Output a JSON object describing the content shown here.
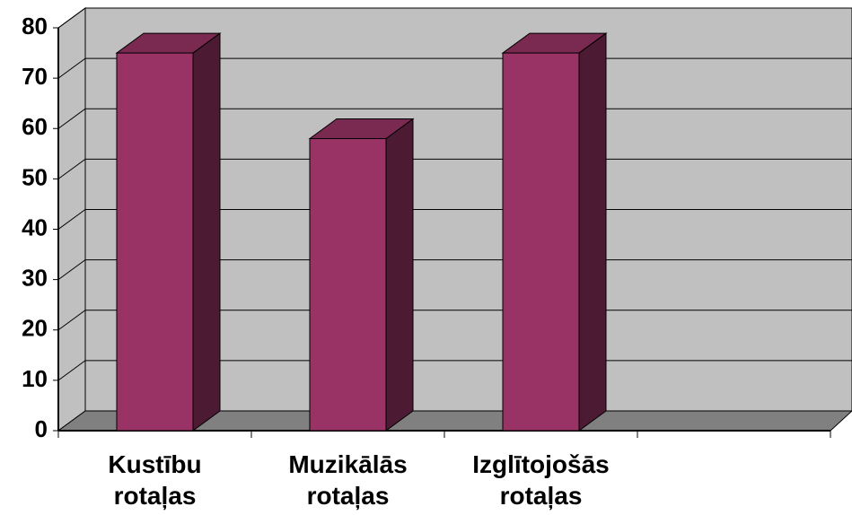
{
  "chart_data": {
    "type": "bar",
    "categories": [
      "Kustību rotaļas",
      "Muzikālās rotaļas",
      "Izglītojošās rotaļas",
      null
    ],
    "values": [
      75,
      58,
      75,
      null
    ],
    "color": "#993366",
    "ylim": [
      0,
      80
    ],
    "yticks": [
      0,
      10,
      20,
      30,
      40,
      50,
      60,
      70,
      80
    ],
    "grid": true
  }
}
